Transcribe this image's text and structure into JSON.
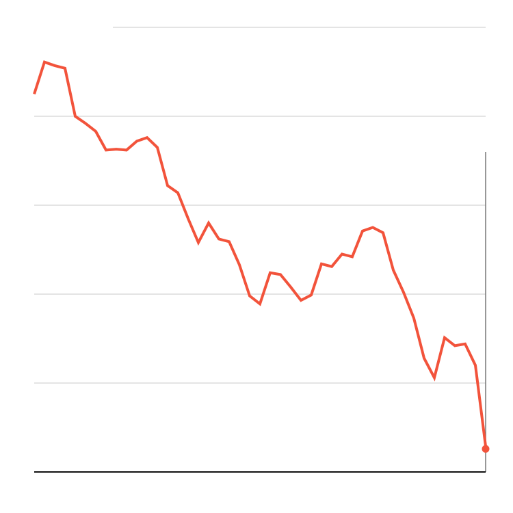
{
  "chart_data": {
    "type": "line",
    "color": "#f2533b",
    "values": [
      4.25,
      4.61,
      4.57,
      4.54,
      4.0,
      3.92,
      3.83,
      3.62,
      3.63,
      3.62,
      3.72,
      3.76,
      3.65,
      3.22,
      3.14,
      2.85,
      2.58,
      2.8,
      2.62,
      2.59,
      2.33,
      1.98,
      1.89,
      2.24,
      2.22,
      2.08,
      1.93,
      1.99,
      2.34,
      2.31,
      2.45,
      2.42,
      2.71,
      2.75,
      2.69,
      2.27,
      2.02,
      1.73,
      1.28,
      1.06,
      1.51,
      1.42,
      1.44,
      1.2,
      0.29
    ],
    "ylim": [
      0,
      5
    ],
    "yticks": [
      0,
      1,
      2,
      3,
      4,
      5
    ],
    "grid": true
  }
}
